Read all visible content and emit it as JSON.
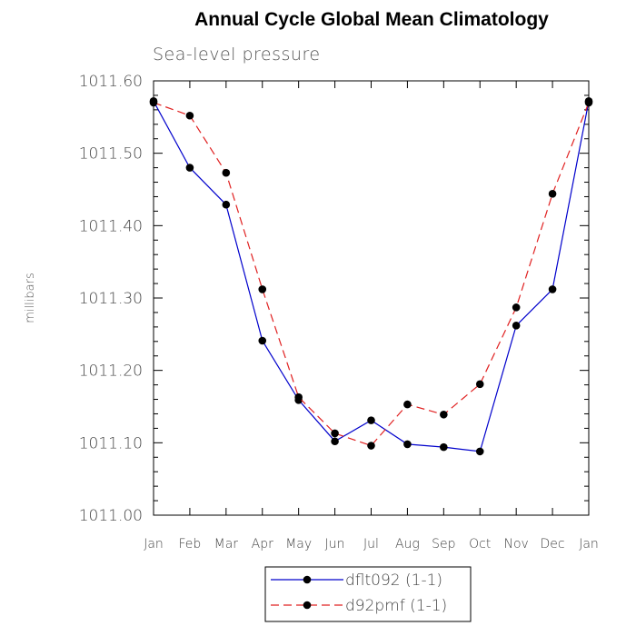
{
  "chart_data": {
    "type": "line",
    "title": "Annual Cycle Global Mean Climatology",
    "subtitle": "Sea-level pressure",
    "ylabel": "millibars",
    "xlabel": "",
    "categories": [
      "Jan",
      "Feb",
      "Mar",
      "Apr",
      "May",
      "Jun",
      "Jul",
      "Aug",
      "Sep",
      "Oct",
      "Nov",
      "Dec",
      "Jan"
    ],
    "ylim": [
      1011.0,
      1011.6
    ],
    "yticks": [
      "1011.00",
      "1011.10",
      "1011.20",
      "1011.30",
      "1011.40",
      "1011.50",
      "1011.60"
    ],
    "ytick_values": [
      1011.0,
      1011.1,
      1011.2,
      1011.3,
      1011.4,
      1011.5,
      1011.6
    ],
    "grid": false,
    "legend_position": "bottom-center",
    "series": [
      {
        "name": "dflt092 (1-1)",
        "color": "#0000cc",
        "dash": "solid",
        "marker": "filled-circle",
        "values": [
          1011.572,
          1011.48,
          1011.429,
          1011.241,
          1011.159,
          1011.102,
          1011.131,
          1011.098,
          1011.094,
          1011.088,
          1011.262,
          1011.312,
          1011.572
        ]
      },
      {
        "name": "d92pmf (1-1)",
        "color": "#e02020",
        "dash": "dashed",
        "marker": "filled-circle",
        "values": [
          1011.57,
          1011.552,
          1011.473,
          1011.312,
          1011.163,
          1011.113,
          1011.096,
          1011.153,
          1011.139,
          1011.181,
          1011.287,
          1011.444,
          1011.57
        ]
      }
    ]
  }
}
